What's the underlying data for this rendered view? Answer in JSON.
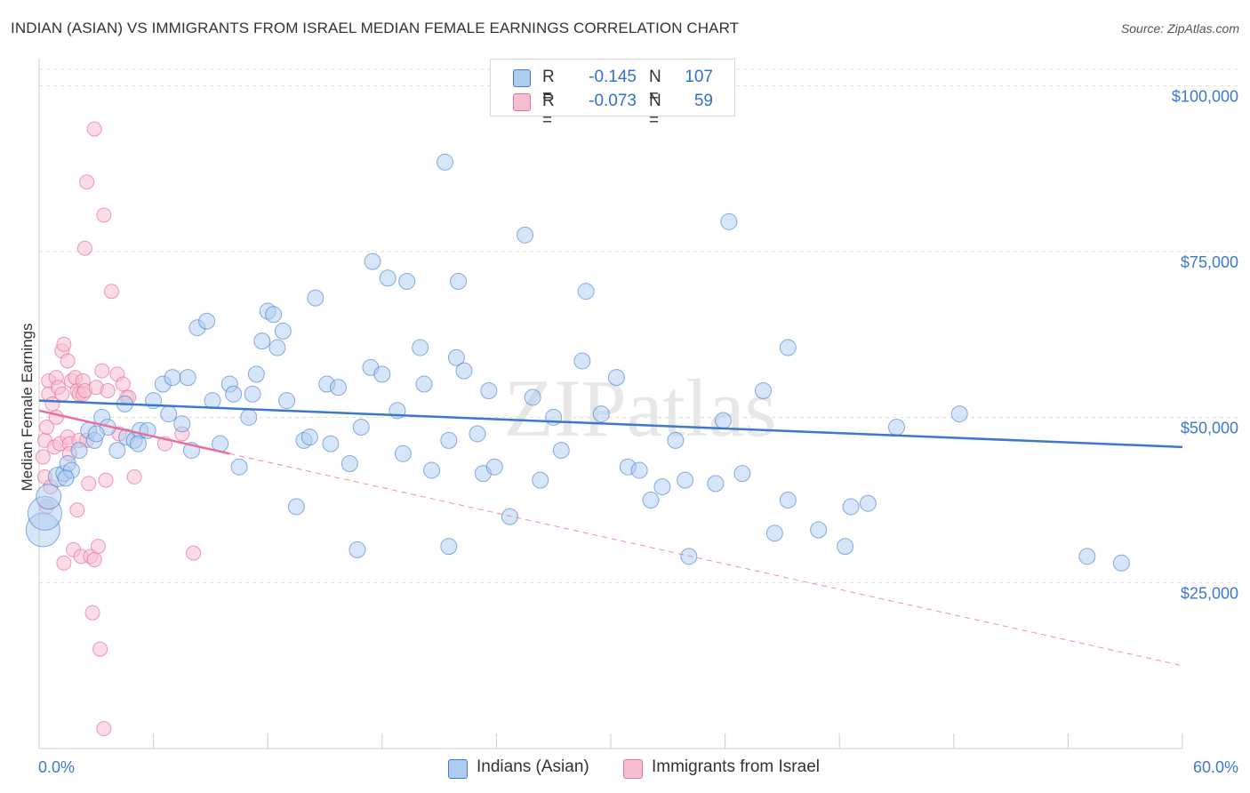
{
  "header": {
    "title": "INDIAN (ASIAN) VS IMMIGRANTS FROM ISRAEL MEDIAN FEMALE EARNINGS CORRELATION CHART",
    "source": "Source: ZipAtlas.com"
  },
  "legend": {
    "rows": [
      {
        "r_label": "R =",
        "r_value": "-0.145",
        "n_label": "N =",
        "n_value": "107"
      },
      {
        "r_label": "R =",
        "r_value": "-0.073",
        "n_label": "N =",
        "n_value": "59"
      }
    ]
  },
  "bottom_legend": {
    "series1": "Indians (Asian)",
    "series2": "Immigrants from Israel"
  },
  "watermark": "ZIPatlas",
  "colors": {
    "blue": "#3d78d0",
    "blue_fill": "#aecbf0",
    "pink": "#e8719a",
    "pink_fill": "#f6bfd1",
    "grid": "#dddddd",
    "tick_label": "#3d78d0"
  },
  "chart_data": {
    "type": "scatter",
    "title": "INDIAN (ASIAN) VS IMMIGRANTS FROM ISRAEL MEDIAN FEMALE EARNINGS CORRELATION CHART",
    "xlabel": "",
    "ylabel": "Median Female Earnings",
    "xlim": [
      0,
      60
    ],
    "ylim": [
      0,
      102500
    ],
    "x_tick_labels": [
      "0.0%",
      "60.0%"
    ],
    "y_ticks": [
      25000,
      50000,
      75000,
      100000
    ],
    "y_tick_labels": [
      "$25,000",
      "$50,000",
      "$75,000",
      "$100,000"
    ],
    "grid": "horizontal dashed",
    "legend_position": "top-center",
    "series": [
      {
        "name": "Indians (Asian)",
        "r": -0.145,
        "n": 107,
        "trend": {
          "x": [
            0,
            60
          ],
          "y": [
            52500,
            45500
          ],
          "style": "solid"
        },
        "points": [
          [
            0.2,
            33000
          ],
          [
            0.3,
            35500
          ],
          [
            0.5,
            38000
          ],
          [
            1.0,
            41000
          ],
          [
            1.3,
            41500
          ],
          [
            1.5,
            43000
          ],
          [
            1.7,
            42000
          ],
          [
            2.1,
            45000
          ],
          [
            2.6,
            48000
          ],
          [
            2.9,
            46500
          ],
          [
            3.3,
            50000
          ],
          [
            3.6,
            48500
          ],
          [
            3.0,
            47500
          ],
          [
            4.1,
            45000
          ],
          [
            4.5,
            52000
          ],
          [
            4.6,
            47000
          ],
          [
            5.0,
            46500
          ],
          [
            5.3,
            48000
          ],
          [
            5.2,
            46000
          ],
          [
            5.7,
            48000
          ],
          [
            6.0,
            52500
          ],
          [
            6.5,
            55000
          ],
          [
            6.8,
            50500
          ],
          [
            7.0,
            56000
          ],
          [
            7.5,
            49000
          ],
          [
            7.8,
            56000
          ],
          [
            8.0,
            45000
          ],
          [
            8.3,
            63500
          ],
          [
            8.8,
            64500
          ],
          [
            9.1,
            52500
          ],
          [
            9.5,
            46000
          ],
          [
            10.0,
            55000
          ],
          [
            10.2,
            53500
          ],
          [
            10.5,
            42500
          ],
          [
            11.0,
            50000
          ],
          [
            11.2,
            53500
          ],
          [
            11.4,
            56500
          ],
          [
            11.7,
            61500
          ],
          [
            12.0,
            66000
          ],
          [
            12.3,
            65500
          ],
          [
            12.5,
            60500
          ],
          [
            12.8,
            63000
          ],
          [
            13.0,
            52500
          ],
          [
            13.5,
            36500
          ],
          [
            13.9,
            46500
          ],
          [
            14.2,
            47000
          ],
          [
            14.5,
            68000
          ],
          [
            15.1,
            55000
          ],
          [
            15.3,
            46000
          ],
          [
            15.7,
            54500
          ],
          [
            16.3,
            43000
          ],
          [
            16.7,
            30000
          ],
          [
            16.9,
            48500
          ],
          [
            17.4,
            57500
          ],
          [
            17.5,
            73500
          ],
          [
            18.0,
            56500
          ],
          [
            18.3,
            71000
          ],
          [
            18.8,
            51000
          ],
          [
            19.1,
            44500
          ],
          [
            19.3,
            70500
          ],
          [
            20.0,
            60500
          ],
          [
            20.2,
            55000
          ],
          [
            20.6,
            42000
          ],
          [
            21.3,
            88500
          ],
          [
            21.5,
            30500
          ],
          [
            21.5,
            46500
          ],
          [
            21.9,
            59000
          ],
          [
            22.0,
            70500
          ],
          [
            22.3,
            57000
          ],
          [
            23.0,
            47500
          ],
          [
            23.3,
            41500
          ],
          [
            23.6,
            54000
          ],
          [
            23.9,
            42500
          ],
          [
            24.7,
            35000
          ],
          [
            25.5,
            77500
          ],
          [
            25.9,
            53000
          ],
          [
            26.3,
            40500
          ],
          [
            27.0,
            50000
          ],
          [
            27.4,
            45000
          ],
          [
            28.5,
            58500
          ],
          [
            28.7,
            69000
          ],
          [
            29.5,
            50500
          ],
          [
            30.3,
            56000
          ],
          [
            30.9,
            42500
          ],
          [
            31.5,
            42000
          ],
          [
            32.1,
            37500
          ],
          [
            32.7,
            39500
          ],
          [
            33.4,
            46500
          ],
          [
            33.9,
            40500
          ],
          [
            34.1,
            29000
          ],
          [
            35.5,
            40000
          ],
          [
            35.9,
            49500
          ],
          [
            36.2,
            79500
          ],
          [
            36.9,
            41500
          ],
          [
            38.0,
            54000
          ],
          [
            38.6,
            32500
          ],
          [
            39.3,
            37500
          ],
          [
            39.3,
            60500
          ],
          [
            40.9,
            33000
          ],
          [
            42.3,
            30500
          ],
          [
            42.6,
            36500
          ],
          [
            43.5,
            37000
          ],
          [
            45.0,
            48500
          ],
          [
            48.3,
            50500
          ],
          [
            55.0,
            29000
          ],
          [
            56.8,
            28000
          ],
          [
            1.4,
            40800
          ]
        ]
      },
      {
        "name": "Immigrants from Israel",
        "r": -0.073,
        "n": 59,
        "trend": {
          "x": [
            0,
            10
          ],
          "y": [
            51000,
            44500
          ],
          "style": "solid",
          "extended_to": [
            60,
            12500
          ],
          "extended_style": "dashed"
        },
        "points": [
          [
            0.2,
            44000
          ],
          [
            0.3,
            46500
          ],
          [
            0.3,
            41000
          ],
          [
            0.4,
            36500
          ],
          [
            0.4,
            48500
          ],
          [
            0.5,
            55500
          ],
          [
            0.5,
            53500
          ],
          [
            0.6,
            39500
          ],
          [
            0.7,
            52000
          ],
          [
            0.8,
            45500
          ],
          [
            0.9,
            56000
          ],
          [
            0.9,
            50000
          ],
          [
            1.0,
            54500
          ],
          [
            1.1,
            46000
          ],
          [
            1.2,
            60000
          ],
          [
            1.2,
            53500
          ],
          [
            1.3,
            61000
          ],
          [
            1.3,
            28000
          ],
          [
            1.5,
            58500
          ],
          [
            1.5,
            47000
          ],
          [
            1.6,
            46000
          ],
          [
            1.6,
            44500
          ],
          [
            1.7,
            55500
          ],
          [
            1.8,
            30000
          ],
          [
            1.9,
            56000
          ],
          [
            2.0,
            54000
          ],
          [
            2.0,
            36000
          ],
          [
            2.1,
            46500
          ],
          [
            2.1,
            53500
          ],
          [
            2.2,
            29000
          ],
          [
            2.3,
            55500
          ],
          [
            2.3,
            53500
          ],
          [
            2.4,
            75500
          ],
          [
            2.4,
            54000
          ],
          [
            2.5,
            85500
          ],
          [
            2.5,
            46500
          ],
          [
            2.6,
            40000
          ],
          [
            2.7,
            29000
          ],
          [
            2.8,
            20500
          ],
          [
            2.9,
            93500
          ],
          [
            2.9,
            28500
          ],
          [
            3.0,
            54500
          ],
          [
            3.1,
            30500
          ],
          [
            3.2,
            15000
          ],
          [
            3.3,
            57000
          ],
          [
            3.4,
            80500
          ],
          [
            3.4,
            3000
          ],
          [
            3.5,
            40500
          ],
          [
            3.6,
            54000
          ],
          [
            3.8,
            69000
          ],
          [
            4.1,
            56500
          ],
          [
            4.2,
            47500
          ],
          [
            4.4,
            55000
          ],
          [
            4.6,
            53000
          ],
          [
            4.7,
            53000
          ],
          [
            5.0,
            41000
          ],
          [
            6.6,
            46000
          ],
          [
            7.5,
            47500
          ],
          [
            8.1,
            29500
          ]
        ]
      }
    ]
  }
}
